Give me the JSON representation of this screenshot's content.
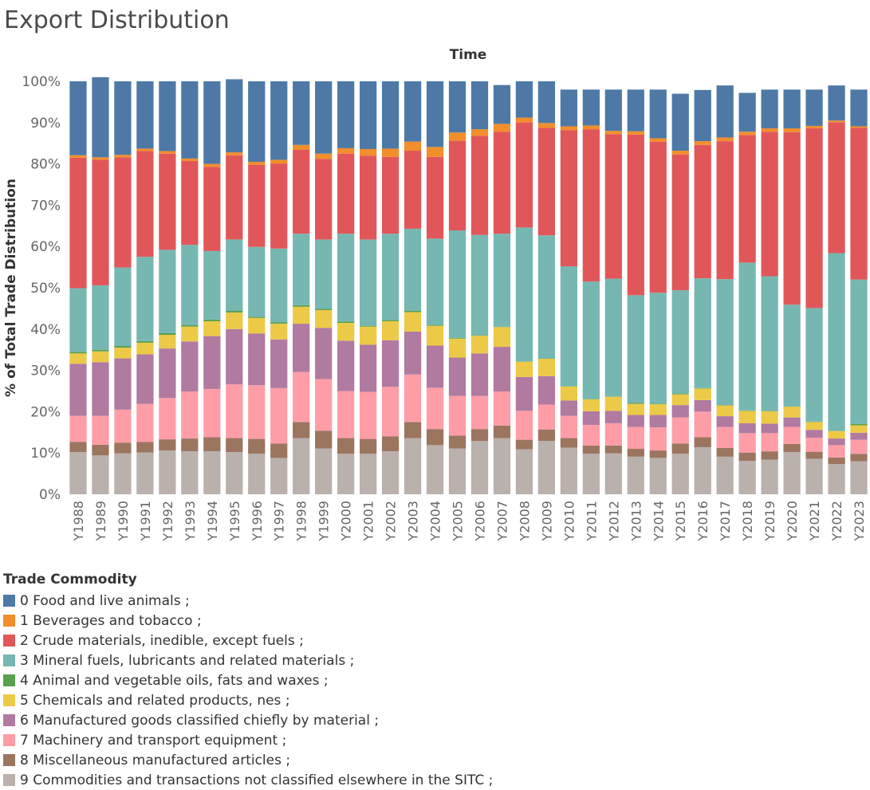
{
  "title": "Export Distribution",
  "chart_data": {
    "type": "bar",
    "stacked": true,
    "title": "Export Distribution",
    "xlabel": "Time",
    "ylabel": "% of Total Trade Distribution",
    "ylim": [
      0,
      100
    ],
    "yticks": [
      "0%",
      "10%",
      "20%",
      "30%",
      "40%",
      "50%",
      "60%",
      "70%",
      "80%",
      "90%",
      "100%"
    ],
    "legend_title": "Trade Commodity",
    "legend_position": "bottom-left",
    "categories": [
      "Y1988",
      "Y1989",
      "Y1990",
      "Y1991",
      "Y1992",
      "Y1993",
      "Y1994",
      "Y1995",
      "Y1996",
      "Y1997",
      "Y1998",
      "Y1999",
      "Y2000",
      "Y2001",
      "Y2002",
      "Y2003",
      "Y2004",
      "Y2005",
      "Y2006",
      "Y2007",
      "Y2008",
      "Y2009",
      "Y2010",
      "Y2011",
      "Y2012",
      "Y2013",
      "Y2014",
      "Y2015",
      "Y2016",
      "Y2017",
      "Y2018",
      "Y2019",
      "Y2020",
      "Y2021",
      "Y2022",
      "Y2023"
    ],
    "series": [
      {
        "name": "9 Commodities and transactions not classified elsewhere in the SITC ;",
        "color": "#bab0ac",
        "values": [
          10.2,
          9.4,
          9.9,
          10.1,
          10.6,
          10.4,
          10.4,
          10.2,
          9.8,
          8.8,
          13.6,
          11.1,
          9.8,
          9.8,
          10.4,
          13.6,
          11.9,
          11.1,
          12.9,
          13.6,
          10.9,
          12.9,
          11.3,
          9.8,
          9.9,
          9.1,
          8.8,
          9.8,
          11.4,
          9.1,
          8.1,
          8.4,
          10.2,
          8.6,
          7.3,
          8.0
        ]
      },
      {
        "name": "8 Miscellaneous manufactured articles ;",
        "color": "#9c755f",
        "values": [
          2.5,
          2.6,
          2.6,
          2.6,
          2.7,
          3.1,
          3.4,
          3.4,
          3.6,
          3.5,
          3.9,
          4.3,
          3.8,
          3.6,
          3.6,
          3.9,
          3.9,
          3.1,
          2.9,
          3.0,
          2.3,
          2.8,
          2.3,
          2.0,
          1.9,
          1.9,
          1.8,
          2.5,
          2.4,
          2.1,
          2.0,
          2.0,
          2.0,
          1.7,
          1.6,
          1.8
        ]
      },
      {
        "name": "7 Machinery and transport equipment ;",
        "color": "#ff9da7",
        "values": [
          6.3,
          7.0,
          8.0,
          9.2,
          10.0,
          11.4,
          11.7,
          13.0,
          13.0,
          13.4,
          12.1,
          12.5,
          11.4,
          11.4,
          12.0,
          11.5,
          10.0,
          9.6,
          8.0,
          8.3,
          7.0,
          6.0,
          5.4,
          5.0,
          5.4,
          5.3,
          5.6,
          6.3,
          6.2,
          5.1,
          4.7,
          4.4,
          4.1,
          3.4,
          3.0,
          3.4
        ]
      },
      {
        "name": "6 Manufactured goods classified chiefly by material ;",
        "color": "#b07aa1",
        "values": [
          12.6,
          13.0,
          12.4,
          12.0,
          12.0,
          12.1,
          12.8,
          13.4,
          12.5,
          11.8,
          11.7,
          12.4,
          12.2,
          11.4,
          11.3,
          10.4,
          10.2,
          9.3,
          10.3,
          10.8,
          8.2,
          6.9,
          3.7,
          3.3,
          3.0,
          2.9,
          3.0,
          3.0,
          2.8,
          2.6,
          2.4,
          2.3,
          2.3,
          1.9,
          1.6,
          1.7
        ]
      },
      {
        "name": "5 Chemicals and related products, nes ;",
        "color": "#edc948",
        "values": [
          2.5,
          2.6,
          2.6,
          2.8,
          3.3,
          3.6,
          3.6,
          4.0,
          3.8,
          3.8,
          4.1,
          4.3,
          4.3,
          4.4,
          4.6,
          4.7,
          4.8,
          4.6,
          4.3,
          4.8,
          3.7,
          4.2,
          3.4,
          2.9,
          3.4,
          2.7,
          2.6,
          2.6,
          2.8,
          2.6,
          3.0,
          3.0,
          2.6,
          1.9,
          1.8,
          1.8
        ]
      },
      {
        "name": "4 Animal and vegetable oils, fats and waxes ;",
        "color": "#59a14f",
        "values": [
          0.4,
          0.4,
          0.4,
          0.4,
          0.4,
          0.4,
          0.4,
          0.4,
          0.3,
          0.3,
          0.4,
          0.3,
          0.3,
          0.2,
          0.3,
          0.3,
          0.2,
          0.2,
          0.1,
          0.1,
          0.1,
          0.1,
          0.1,
          0.1,
          0.1,
          0.2,
          0.1,
          0.2,
          0.1,
          0.1,
          0.1,
          0.1,
          0.1,
          0.1,
          0.1,
          0.3
        ]
      },
      {
        "name": "3 Mineral fuels, lubricants and related materials ;",
        "color": "#76b7b2",
        "values": [
          15.4,
          15.6,
          19.0,
          20.4,
          20.2,
          19.4,
          16.6,
          17.3,
          16.9,
          17.9,
          17.3,
          16.8,
          21.3,
          20.9,
          20.9,
          19.9,
          20.9,
          26.0,
          24.3,
          22.5,
          32.4,
          29.8,
          29.0,
          28.4,
          28.5,
          26.1,
          26.9,
          25.0,
          26.6,
          30.5,
          35.8,
          32.6,
          24.6,
          27.5,
          43.0,
          35.0
        ]
      },
      {
        "name": "2 Crude materials, inedible, except fuels ;",
        "color": "#e15759",
        "values": [
          31.6,
          30.4,
          26.7,
          25.6,
          23.3,
          20.3,
          20.4,
          20.4,
          19.9,
          20.6,
          20.3,
          19.5,
          19.4,
          20.3,
          18.6,
          18.9,
          19.8,
          21.7,
          24.0,
          24.7,
          25.5,
          26.0,
          33.0,
          36.9,
          35.0,
          38.9,
          36.6,
          32.9,
          32.3,
          33.4,
          30.9,
          35.0,
          41.8,
          43.5,
          31.7,
          36.7
        ]
      },
      {
        "name": "1 Beverages and tobacco ;",
        "color": "#f28e2b",
        "values": [
          0.6,
          0.6,
          0.6,
          0.6,
          0.6,
          0.6,
          0.7,
          0.7,
          0.7,
          0.9,
          1.2,
          1.3,
          1.3,
          1.6,
          2.0,
          2.2,
          2.4,
          2.0,
          1.6,
          1.9,
          1.1,
          1.2,
          0.9,
          0.9,
          0.8,
          0.8,
          0.8,
          0.9,
          0.9,
          0.9,
          0.8,
          0.8,
          0.9,
          0.6,
          0.4,
          0.4
        ]
      },
      {
        "name": "0 Food and live animals ;",
        "color": "#4e79a7",
        "values": [
          17.9,
          19.4,
          17.8,
          16.3,
          16.9,
          18.7,
          20.0,
          17.7,
          19.5,
          19.0,
          15.4,
          17.5,
          16.2,
          16.4,
          16.3,
          14.6,
          15.9,
          12.4,
          11.6,
          9.4,
          8.8,
          10.1,
          8.9,
          8.7,
          10.0,
          10.1,
          11.8,
          13.8,
          12.4,
          12.6,
          9.4,
          9.4,
          9.4,
          8.8,
          8.5,
          8.9
        ]
      }
    ]
  }
}
